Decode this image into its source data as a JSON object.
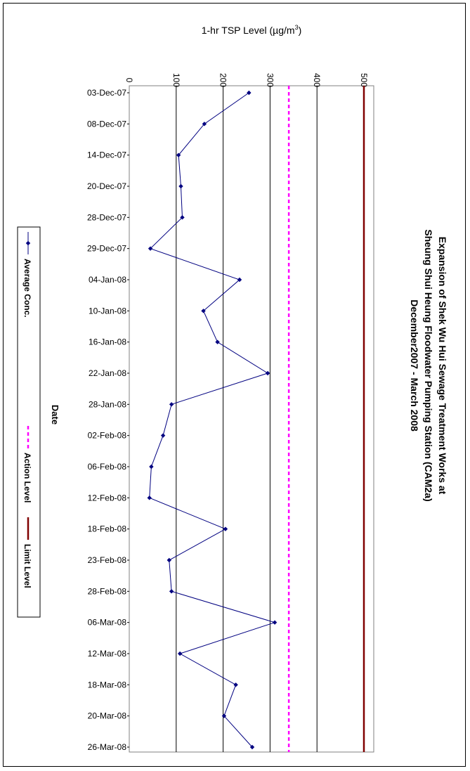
{
  "chart_data": {
    "type": "line",
    "title_lines": [
      "Expansion of Shek Wu Hui Sewage Treatment Works at",
      "Sheung Shui Heung Floodwater Pumping Station (CAM2a)",
      "December2007 - March 2008"
    ],
    "ylabel_prefix": "1-hr TSP Level  (",
    "ylabel_unit": "µg/m",
    "ylabel_sup": "3",
    "ylabel_suffix": ")",
    "xlabel": "Date",
    "ylim": [
      0,
      500
    ],
    "yticks": [
      0,
      100,
      200,
      300,
      400,
      500
    ],
    "grid": true,
    "legend_position": "left",
    "categories": [
      "03-Dec-07",
      "08-Dec-07",
      "14-Dec-07",
      "20-Dec-07",
      "28-Dec-07",
      "29-Dec-07",
      "04-Jan-08",
      "10-Jan-08",
      "16-Jan-08",
      "22-Jan-08",
      "28-Jan-08",
      "02-Feb-08",
      "06-Feb-08",
      "12-Feb-08",
      "18-Feb-08",
      "23-Feb-08",
      "28-Feb-08",
      "06-Mar-08",
      "12-Mar-08",
      "18-Mar-08",
      "20-Mar-08",
      "26-Mar-08"
    ],
    "series": [
      {
        "name": "Average Conc.",
        "color": "#000080",
        "style": "line-diamond",
        "values": [
          255,
          160,
          105,
          110,
          113,
          45,
          235,
          158,
          188,
          295,
          90,
          72,
          47,
          43,
          205,
          85,
          90,
          310,
          108,
          227,
          202,
          262
        ]
      },
      {
        "name": "Action Level",
        "color": "#ff00ff",
        "style": "dashed",
        "value": 340
      },
      {
        "name": "Limit Level",
        "color": "#800000",
        "style": "solid",
        "value": 500
      }
    ]
  }
}
